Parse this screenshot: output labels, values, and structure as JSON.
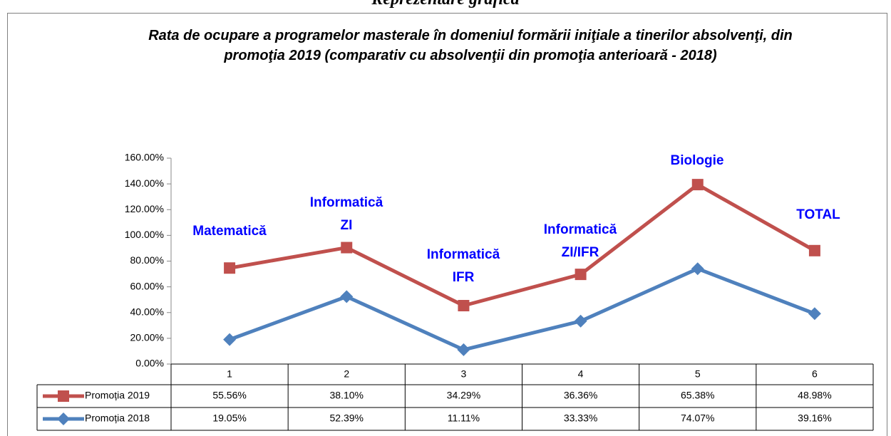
{
  "header": "Reprezentare grafică",
  "chart_data": {
    "type": "line",
    "stacked": true,
    "title": "Rata de ocupare a programelor masterale în domeniul formării iniţiale a tinerilor absolvenţi, din promoţia 2019 (comparativ cu absolvenţii din promoţia anterioară - 2018)",
    "categories": [
      "1",
      "2",
      "3",
      "4",
      "5",
      "6"
    ],
    "annotations": [
      [
        "Matematică"
      ],
      [
        "Informatică",
        "ZI"
      ],
      [
        "Informatică",
        "IFR"
      ],
      [
        "Informatică",
        "ZI/IFR"
      ],
      [
        "Biologie"
      ],
      [
        "TOTAL"
      ]
    ],
    "series": [
      {
        "name": "Promoția 2019",
        "color": "#c0504d",
        "marker": "square",
        "values": [
          55.56,
          38.1,
          34.29,
          36.36,
          65.38,
          48.98
        ],
        "value_labels": [
          "55.56%",
          "38.10%",
          "34.29%",
          "36.36%",
          "65.38%",
          "48.98%"
        ]
      },
      {
        "name": "Promoția 2018",
        "color": "#4f81bd",
        "marker": "diamond",
        "values": [
          19.05,
          52.39,
          11.11,
          33.33,
          74.07,
          39.16
        ],
        "value_labels": [
          "19.05%",
          "52.39%",
          "11.11%",
          "33.33%",
          "74.07%",
          "39.16%"
        ]
      }
    ],
    "ylim": [
      0,
      160
    ],
    "yticks": [
      {
        "value": 0,
        "label": "0.00%"
      },
      {
        "value": 20,
        "label": "20.00%"
      },
      {
        "value": 40,
        "label": "40.00%"
      },
      {
        "value": 60,
        "label": "60.00%"
      },
      {
        "value": 80,
        "label": "80.00%"
      },
      {
        "value": 100,
        "label": "100.00%"
      },
      {
        "value": 120,
        "label": "120.00%"
      },
      {
        "value": 140,
        "label": "140.00%"
      },
      {
        "value": 160,
        "label": "160.00%"
      }
    ],
    "grid": false
  }
}
